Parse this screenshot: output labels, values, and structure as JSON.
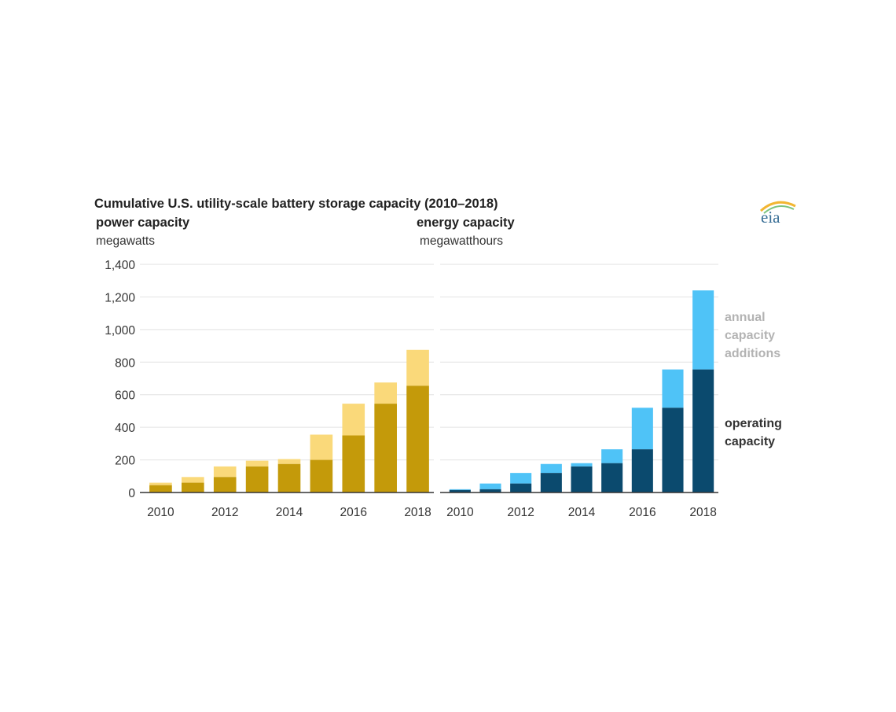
{
  "title": "Cumulative U.S. utility-scale battery storage capacity (2010–2018)",
  "logo": {
    "text": "eia",
    "icon": "eia-logo-arc-icon"
  },
  "legend": {
    "additions_lines": [
      "annual",
      "capacity",
      "additions"
    ],
    "operating_lines": [
      "operating",
      "capacity"
    ]
  },
  "colors": {
    "power_operating": "#c49a0a",
    "power_additions": "#fad97a",
    "energy_operating": "#0b4a6e",
    "energy_additions": "#4fc3f7",
    "gridline": "#e2e2e2",
    "axis": "#333333"
  },
  "y_ticks": [
    "0",
    "200",
    "400",
    "600",
    "800",
    "1,000",
    "1,200",
    "1,400"
  ],
  "x_ticks": [
    "2010",
    "2012",
    "2014",
    "2016",
    "2018"
  ],
  "chart_data": [
    {
      "type": "bar",
      "stacked": true,
      "title": "power capacity",
      "ylabel": "megawatts",
      "categories": [
        2010,
        2011,
        2012,
        2013,
        2014,
        2015,
        2016,
        2017,
        2018
      ],
      "ylim": [
        0,
        1400
      ],
      "grid": true,
      "series": [
        {
          "values": [
            45,
            60,
            95,
            160,
            175,
            200,
            350,
            545,
            655
          ]
        },
        {
          "values": [
            15,
            35,
            65,
            35,
            30,
            155,
            195,
            130,
            220
          ]
        }
      ]
    },
    {
      "type": "bar",
      "stacked": true,
      "title": "energy capacity",
      "ylabel": "megawatthours",
      "categories": [
        2010,
        2011,
        2012,
        2013,
        2014,
        2015,
        2016,
        2017,
        2018
      ],
      "ylim": [
        0,
        1400
      ],
      "grid": true,
      "series": [
        {
          "values": [
            15,
            20,
            55,
            120,
            160,
            180,
            265,
            520,
            755
          ]
        },
        {
          "values": [
            5,
            35,
            65,
            55,
            20,
            85,
            255,
            235,
            485
          ]
        }
      ]
    }
  ]
}
